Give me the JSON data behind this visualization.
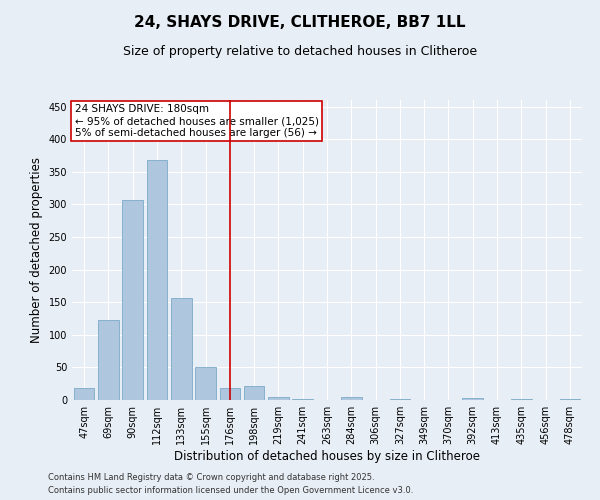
{
  "title": "24, SHAYS DRIVE, CLITHEROE, BB7 1LL",
  "subtitle": "Size of property relative to detached houses in Clitheroe",
  "xlabel": "Distribution of detached houses by size in Clitheroe",
  "ylabel": "Number of detached properties",
  "categories": [
    "47sqm",
    "69sqm",
    "90sqm",
    "112sqm",
    "133sqm",
    "155sqm",
    "176sqm",
    "198sqm",
    "219sqm",
    "241sqm",
    "263sqm",
    "284sqm",
    "306sqm",
    "327sqm",
    "349sqm",
    "370sqm",
    "392sqm",
    "413sqm",
    "435sqm",
    "456sqm",
    "478sqm"
  ],
  "values": [
    18,
    122,
    307,
    368,
    157,
    50,
    18,
    22,
    5,
    1,
    0,
    5,
    0,
    1,
    0,
    0,
    3,
    0,
    1,
    0,
    1
  ],
  "bar_color": "#aec6de",
  "bar_edge_color": "#7aaac8",
  "vline_x_index": 6,
  "vline_color": "#cc0000",
  "annotation_text": "24 SHAYS DRIVE: 180sqm\n← 95% of detached houses are smaller (1,025)\n5% of semi-detached houses are larger (56) →",
  "annotation_box_color": "#ffffff",
  "annotation_box_edge_color": "#cc0000",
  "ylim": [
    0,
    460
  ],
  "yticks": [
    0,
    50,
    100,
    150,
    200,
    250,
    300,
    350,
    400,
    450
  ],
  "background_color": "#e8eef5",
  "footer_line1": "Contains HM Land Registry data © Crown copyright and database right 2025.",
  "footer_line2": "Contains public sector information licensed under the Open Government Licence v3.0.",
  "title_fontsize": 11,
  "subtitle_fontsize": 9,
  "tick_fontsize": 7,
  "label_fontsize": 8.5,
  "footer_fontsize": 6,
  "annotation_fontsize": 7.5
}
